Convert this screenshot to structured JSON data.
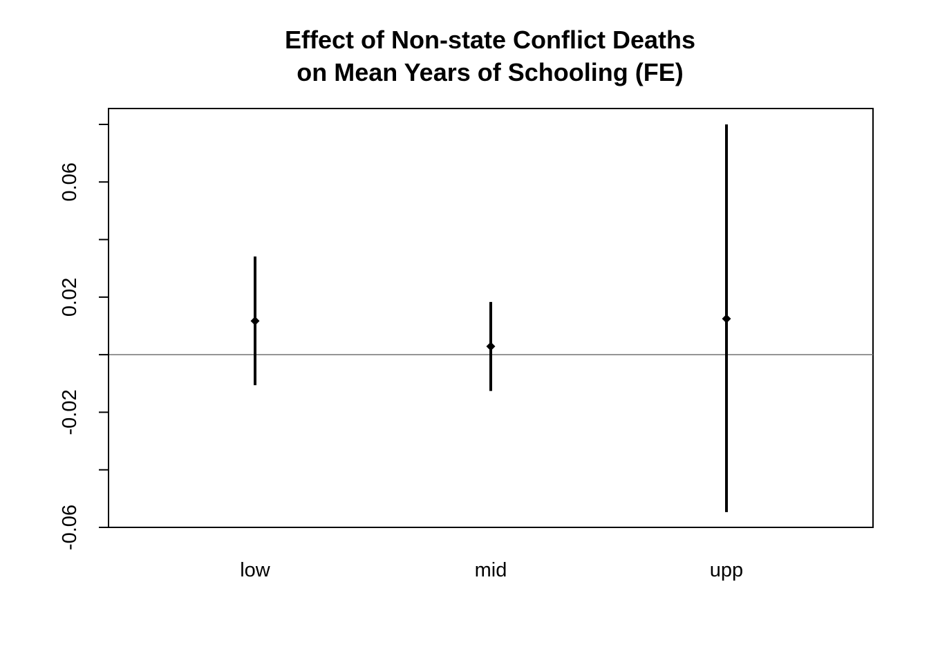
{
  "chart_data": {
    "type": "errorbar",
    "title_lines": [
      "Effect of Non-state Conflict Deaths",
      "on Mean Years of Schooling (FE)"
    ],
    "xlabel": "",
    "ylabel": "",
    "categories": [
      "low",
      "mid",
      "upp"
    ],
    "points": [
      {
        "category": "low",
        "estimate": 0.0117,
        "lower": -0.0106,
        "upper": 0.0341
      },
      {
        "category": "mid",
        "estimate": 0.0029,
        "lower": -0.0126,
        "upper": 0.0183
      },
      {
        "category": "upp",
        "estimate": 0.0125,
        "lower": -0.0547,
        "upper": 0.08
      }
    ],
    "reference_line": 0,
    "ylim": [
      -0.06,
      0.08
    ],
    "y_ticks": [
      -0.06,
      -0.04,
      -0.02,
      0,
      0.02,
      0.04,
      0.06,
      0.08
    ],
    "y_tick_labels": [
      {
        "value": -0.06,
        "label": "-0.06"
      },
      {
        "value": -0.02,
        "label": "-0.02"
      },
      {
        "value": 0.02,
        "label": "0.02"
      },
      {
        "value": 0.06,
        "label": "0.06"
      }
    ],
    "grid": false,
    "legend": "none",
    "colors": {
      "marks": "#000000",
      "reference_line": "#707070",
      "frame": "#000000"
    }
  }
}
